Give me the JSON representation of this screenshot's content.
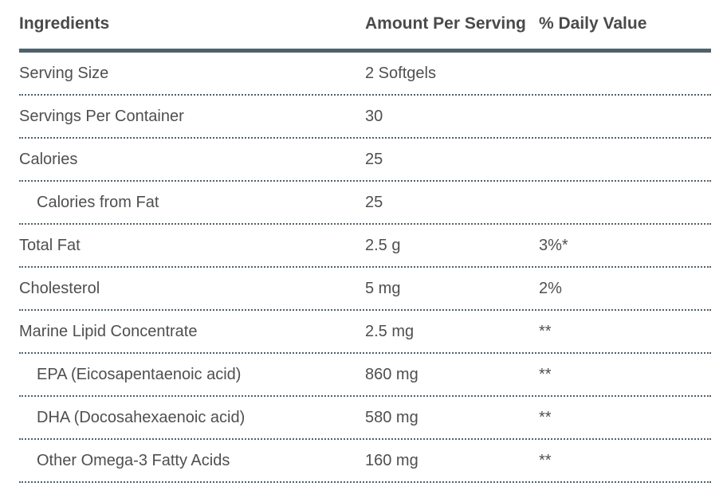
{
  "table": {
    "columns": [
      {
        "label": "Ingredients"
      },
      {
        "label": "Amount Per Serving"
      },
      {
        "label": "% Daily Value"
      }
    ],
    "rows": [
      {
        "ingredient": "Serving Size",
        "amount": "2 Softgels",
        "daily_value": ""
      },
      {
        "ingredient": "Servings Per Container",
        "amount": "30",
        "daily_value": ""
      },
      {
        "ingredient": "Calories",
        "amount": "25",
        "daily_value": ""
      },
      {
        "ingredient": "Calories from Fat",
        "amount": "25",
        "daily_value": ""
      },
      {
        "ingredient": "Total Fat",
        "amount": "2.5 g",
        "daily_value": "3%*"
      },
      {
        "ingredient": "Cholesterol",
        "amount": "5 mg",
        "daily_value": "2%"
      },
      {
        "ingredient": "Marine Lipid Concentrate",
        "amount": "2.5 mg",
        "daily_value": "**"
      },
      {
        "ingredient": "EPA (Eicosapentaenoic acid)",
        "amount": "860 mg",
        "daily_value": "**"
      },
      {
        "ingredient": "DHA (Docosahexaenoic acid)",
        "amount": "580 mg",
        "daily_value": "**"
      },
      {
        "ingredient": "Other Omega-3 Fatty Acids",
        "amount": "160 mg",
        "daily_value": "**"
      }
    ],
    "colors": {
      "rule": "#4f616b",
      "header_text": "#4a4a4a",
      "body_text": "#4f4f4f"
    }
  }
}
